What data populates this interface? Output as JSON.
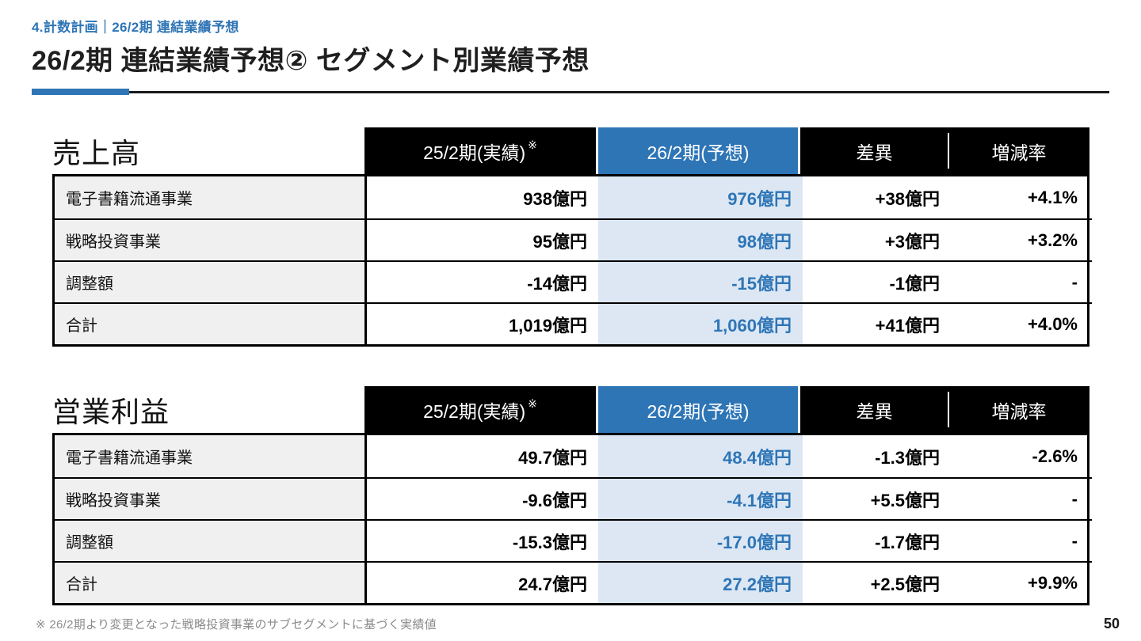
{
  "page": {
    "breadcrumb": "4.計数計画｜26/2期 連結業績予想",
    "title": "26/2期 連結業績予想② セグメント別業績予想",
    "footnote": "※ 26/2期より変更となった戦略投資事業のサブセグメントに基づく実績値",
    "page_number": "50"
  },
  "colors": {
    "accent": "#2E75B6",
    "accent_light": "#DCE7F3",
    "table_header_bg": "#000000",
    "row_label_bg": "#F0F0F0",
    "footnote_gray": "#8C8C8C"
  },
  "tables": [
    {
      "section_title": "売上高",
      "columns": {
        "actual": "25/2期(実績)",
        "actual_sup": "※",
        "forecast": "26/2期(予想)",
        "diff": "差異",
        "rate": "増減率"
      },
      "rows": [
        {
          "label": "電子書籍流通事業",
          "actual": "938億円",
          "forecast": "976億円",
          "diff": "+38億円",
          "rate": "+4.1%"
        },
        {
          "label": "戦略投資事業",
          "actual": "95億円",
          "forecast": "98億円",
          "diff": "+3億円",
          "rate": "+3.2%"
        },
        {
          "label": "調整額",
          "actual": "-14億円",
          "forecast": "-15億円",
          "diff": "-1億円",
          "rate": "-"
        },
        {
          "label": "合計",
          "actual": "1,019億円",
          "forecast": "1,060億円",
          "diff": "+41億円",
          "rate": "+4.0%"
        }
      ]
    },
    {
      "section_title": "営業利益",
      "columns": {
        "actual": "25/2期(実績)",
        "actual_sup": "※",
        "forecast": "26/2期(予想)",
        "diff": "差異",
        "rate": "増減率"
      },
      "rows": [
        {
          "label": "電子書籍流通事業",
          "actual": "49.7億円",
          "forecast": "48.4億円",
          "diff": "-1.3億円",
          "rate": "-2.6%"
        },
        {
          "label": "戦略投資事業",
          "actual": "-9.6億円",
          "forecast": "-4.1億円",
          "diff": "+5.5億円",
          "rate": "-"
        },
        {
          "label": "調整額",
          "actual": "-15.3億円",
          "forecast": "-17.0億円",
          "diff": "-1.7億円",
          "rate": "-"
        },
        {
          "label": "合計",
          "actual": "24.7億円",
          "forecast": "27.2億円",
          "diff": "+2.5億円",
          "rate": "+9.9%"
        }
      ]
    }
  ]
}
